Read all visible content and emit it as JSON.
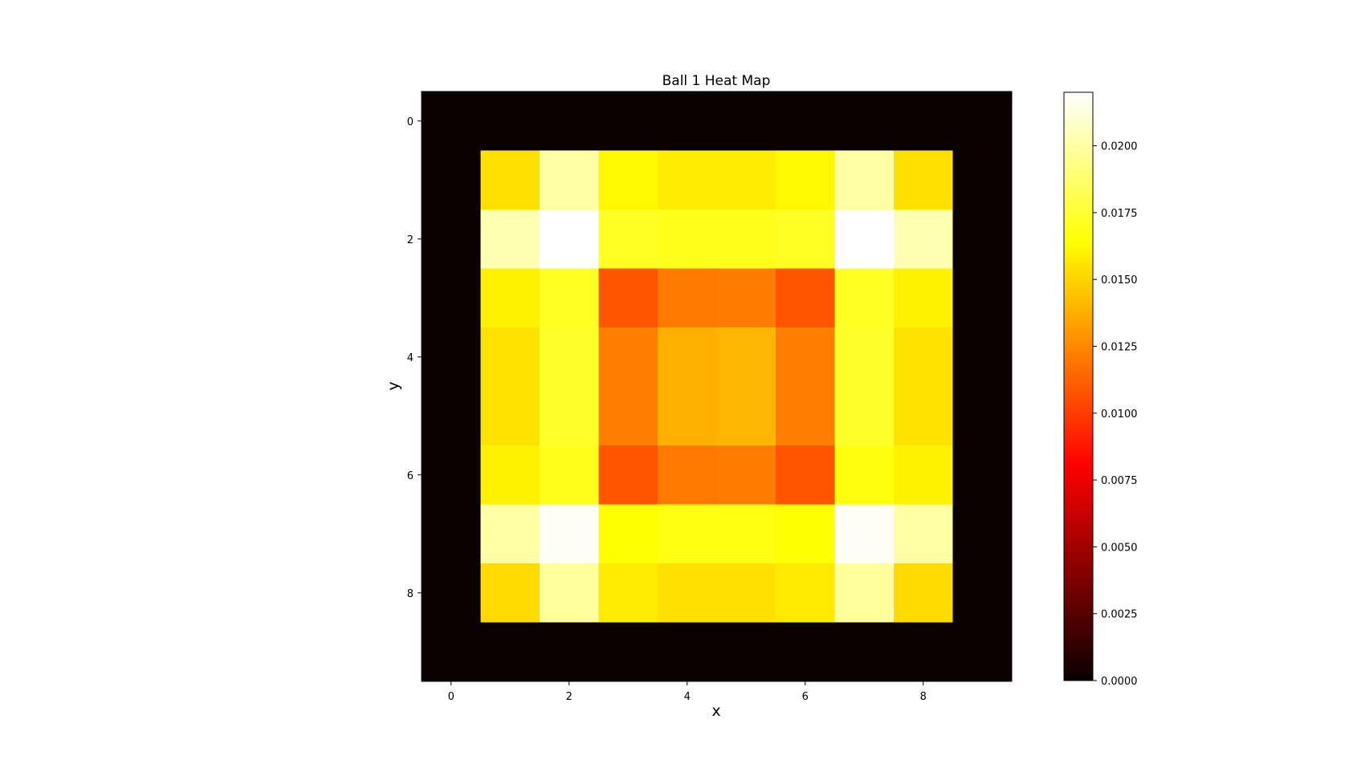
{
  "chart_data": {
    "type": "heatmap",
    "title": "Ball 1 Heat Map",
    "xlabel": "x",
    "ylabel": "y",
    "colormap": "hot",
    "x_ticks": [
      0,
      2,
      4,
      6,
      8
    ],
    "y_ticks": [
      0,
      2,
      4,
      6,
      8
    ],
    "xlim": [
      -0.5,
      9.5
    ],
    "ylim": [
      9.5,
      -0.5
    ],
    "colorbar": {
      "min": 0.0,
      "max": 0.022,
      "ticks": [
        "0.0000",
        "0.0025",
        "0.0050",
        "0.0075",
        "0.0100",
        "0.0125",
        "0.0150",
        "0.0175",
        "0.0200"
      ]
    },
    "values": [
      [
        0,
        0,
        0,
        0,
        0,
        0,
        0,
        0,
        0,
        0
      ],
      [
        0,
        0.0154,
        0.02,
        0.0162,
        0.0158,
        0.0158,
        0.0162,
        0.02,
        0.0154,
        0
      ],
      [
        0,
        0.0203,
        0.0222,
        0.0172,
        0.017,
        0.017,
        0.0172,
        0.0222,
        0.0203,
        0
      ],
      [
        0,
        0.016,
        0.0172,
        0.0108,
        0.012,
        0.0121,
        0.0108,
        0.0172,
        0.016,
        0
      ],
      [
        0,
        0.0155,
        0.0173,
        0.0122,
        0.0138,
        0.014,
        0.0122,
        0.0173,
        0.0155,
        0
      ],
      [
        0,
        0.0155,
        0.0173,
        0.0122,
        0.0138,
        0.014,
        0.0122,
        0.0173,
        0.0155,
        0
      ],
      [
        0,
        0.016,
        0.017,
        0.0108,
        0.012,
        0.0121,
        0.0108,
        0.0167,
        0.016,
        0
      ],
      [
        0,
        0.02,
        0.0218,
        0.0165,
        0.0168,
        0.0168,
        0.0165,
        0.0218,
        0.02,
        0
      ],
      [
        0,
        0.0152,
        0.0198,
        0.0158,
        0.0154,
        0.0154,
        0.0157,
        0.0198,
        0.0152,
        0
      ],
      [
        0,
        0,
        0,
        0,
        0,
        0,
        0,
        0,
        0,
        0
      ]
    ]
  }
}
